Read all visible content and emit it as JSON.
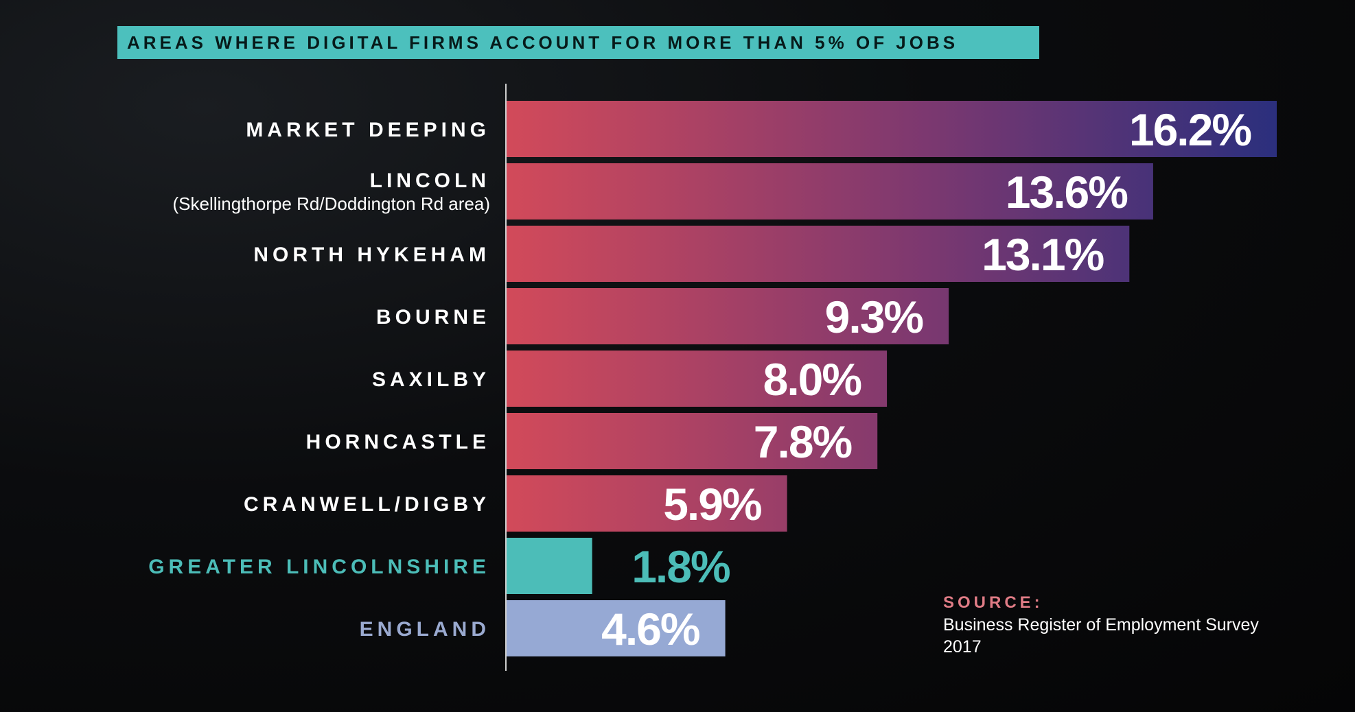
{
  "chart_data": {
    "type": "bar",
    "orientation": "horizontal",
    "title": "AREAS WHERE DIGITAL FIRMS ACCOUNT FOR MORE THAN 5% OF JOBS",
    "categories": [
      {
        "label": "MARKET DEEPING",
        "sublabel": ""
      },
      {
        "label": "LINCOLN",
        "sublabel": "(Skellingthorpe Rd/Doddington Rd area)"
      },
      {
        "label": "NORTH HYKEHAM",
        "sublabel": ""
      },
      {
        "label": "BOURNE",
        "sublabel": ""
      },
      {
        "label": "SAXILBY",
        "sublabel": ""
      },
      {
        "label": "HORNCASTLE",
        "sublabel": ""
      },
      {
        "label": "CRANWELL/DIGBY",
        "sublabel": ""
      },
      {
        "label": "GREATER LINCOLNSHIRE",
        "sublabel": ""
      },
      {
        "label": "ENGLAND",
        "sublabel": ""
      }
    ],
    "values": [
      16.2,
      13.6,
      13.1,
      9.3,
      8.0,
      7.8,
      5.9,
      1.8,
      4.6
    ],
    "value_labels": [
      "16.2%",
      "13.6%",
      "13.1%",
      "9.3%",
      "8.0%",
      "7.8%",
      "5.9%",
      "1.8%",
      "4.6%"
    ],
    "unit": "%",
    "xlim": [
      0,
      16.2
    ],
    "grid": false,
    "colors": {
      "gradient_start": "#d24a5a",
      "gradient_mid": "#7b3870",
      "gradient_end": "#2b2f7d",
      "greater_lincolnshire": "#4cbdb8",
      "england": "#96a9d4",
      "axis": "#cfcfcf",
      "label_default": "#ffffff",
      "label_greater_lincolnshire": "#4cbdb8",
      "label_england": "#9aaad0"
    }
  },
  "source": {
    "label": "SOURCE:",
    "text": "Business Register of Employment Survey 2017"
  }
}
